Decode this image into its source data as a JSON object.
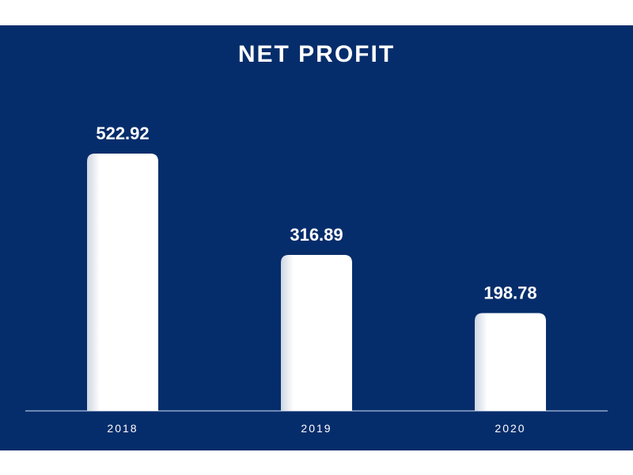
{
  "chart_data": {
    "type": "bar",
    "title": "NET PROFIT",
    "categories": [
      "2018",
      "2019",
      "2020"
    ],
    "values": [
      522.92,
      316.89,
      198.78
    ],
    "value_labels": [
      "522.92",
      "316.89",
      "198.78"
    ],
    "xlabel": "",
    "ylabel": "",
    "ylim": [
      0,
      600
    ],
    "grid": false,
    "legend": "none",
    "colors": {
      "background": "#062d6b",
      "bar": "#ffffff",
      "text": "#ffffff",
      "axis": "#8fa6cc"
    }
  }
}
